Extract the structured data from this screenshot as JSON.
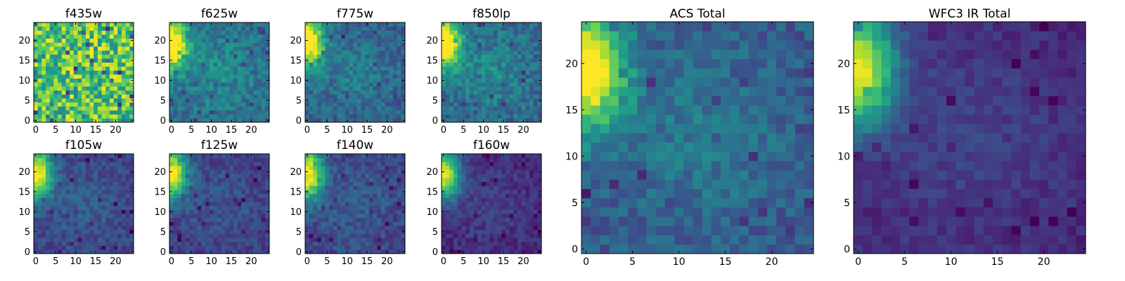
{
  "chart_data": {
    "type": "heatmap",
    "grid_size": 25,
    "colormap": "viridis",
    "grid": false,
    "panels": [
      {
        "id": "f435w",
        "title": "f435w",
        "x_ticks": [
          0,
          5,
          10,
          15,
          20
        ],
        "y_ticks": [
          0,
          5,
          10,
          15,
          20
        ],
        "xlim": [
          -0.5,
          24.5
        ],
        "ylim": [
          -0.5,
          24.5
        ],
        "pattern": "noise",
        "noise_amplitude": 0.28,
        "bright_corner": "upper-left",
        "background_level": 0.72
      },
      {
        "id": "f625w",
        "title": "f625w",
        "x_ticks": [
          0,
          5,
          10,
          15,
          20
        ],
        "y_ticks": [
          0,
          5,
          10,
          15,
          20
        ],
        "xlim": [
          -0.5,
          24.5
        ],
        "ylim": [
          -0.5,
          24.5
        ],
        "pattern": "corner-glow",
        "noise_amplitude": 0.12,
        "bright_corner": "upper-left",
        "background_level": 0.35
      },
      {
        "id": "f775w",
        "title": "f775w",
        "x_ticks": [
          0,
          5,
          10,
          15,
          20
        ],
        "y_ticks": [
          0,
          5,
          10,
          15,
          20
        ],
        "xlim": [
          -0.5,
          24.5
        ],
        "ylim": [
          -0.5,
          24.5
        ],
        "pattern": "corner-glow",
        "noise_amplitude": 0.12,
        "bright_corner": "upper-left",
        "background_level": 0.3
      },
      {
        "id": "f850lp",
        "title": "f850lp",
        "x_ticks": [
          0,
          5,
          10,
          15,
          20
        ],
        "y_ticks": [
          0,
          5,
          10,
          15,
          20
        ],
        "xlim": [
          -0.5,
          24.5
        ],
        "ylim": [
          -0.5,
          24.5
        ],
        "pattern": "corner-glow",
        "noise_amplitude": 0.13,
        "bright_corner": "upper-left",
        "background_level": 0.33
      },
      {
        "id": "f105w",
        "title": "f105w",
        "x_ticks": [
          0,
          5,
          10,
          15,
          20
        ],
        "y_ticks": [
          0,
          5,
          10,
          15,
          20
        ],
        "xlim": [
          -0.5,
          24.5
        ],
        "ylim": [
          -0.5,
          24.5
        ],
        "pattern": "corner-glow",
        "noise_amplitude": 0.09,
        "bright_corner": "upper-left",
        "background_level": 0.2
      },
      {
        "id": "f125w",
        "title": "f125w",
        "x_ticks": [
          0,
          5,
          10,
          15,
          20
        ],
        "y_ticks": [
          0,
          5,
          10,
          15,
          20
        ],
        "xlim": [
          -0.5,
          24.5
        ],
        "ylim": [
          -0.5,
          24.5
        ],
        "pattern": "corner-glow",
        "noise_amplitude": 0.09,
        "bright_corner": "upper-left",
        "background_level": 0.18
      },
      {
        "id": "f140w",
        "title": "f140w",
        "x_ticks": [
          0,
          5,
          10,
          15,
          20
        ],
        "y_ticks": [
          0,
          5,
          10,
          15,
          20
        ],
        "xlim": [
          -0.5,
          24.5
        ],
        "ylim": [
          -0.5,
          24.5
        ],
        "pattern": "corner-glow",
        "noise_amplitude": 0.1,
        "bright_corner": "upper-left",
        "background_level": 0.2
      },
      {
        "id": "f160w",
        "title": "f160w",
        "x_ticks": [
          0,
          5,
          10,
          15,
          20
        ],
        "y_ticks": [
          0,
          5,
          10,
          15,
          20
        ],
        "xlim": [
          -0.5,
          24.5
        ],
        "ylim": [
          -0.5,
          24.5
        ],
        "pattern": "corner-glow",
        "noise_amplitude": 0.08,
        "bright_corner": "upper-left",
        "background_level": 0.12
      },
      {
        "id": "acs-total",
        "title": "ACS Total",
        "x_ticks": [
          0,
          5,
          10,
          15,
          20
        ],
        "y_ticks": [
          0,
          5,
          10,
          15,
          20
        ],
        "xlim": [
          -0.5,
          24.5
        ],
        "ylim": [
          -0.5,
          24.5
        ],
        "pattern": "corner-glow",
        "noise_amplitude": 0.1,
        "bright_corner": "upper-left",
        "background_level": 0.28
      },
      {
        "id": "wfc3-ir-total",
        "title": "WFC3 IR Total",
        "x_ticks": [
          0,
          5,
          10,
          15,
          20
        ],
        "y_ticks": [
          0,
          5,
          10,
          15,
          20
        ],
        "xlim": [
          -0.5,
          24.5
        ],
        "ylim": [
          -0.5,
          24.5
        ],
        "pattern": "corner-glow",
        "noise_amplitude": 0.06,
        "bright_corner": "upper-left",
        "background_level": 0.12
      }
    ]
  },
  "colors": {
    "viridis_stops": [
      "#440154",
      "#482878",
      "#3e4989",
      "#31688e",
      "#26828e",
      "#1f9e89",
      "#35b779",
      "#6ece58",
      "#b5de2b",
      "#fde725"
    ],
    "axis": "#000000",
    "background": "#ffffff"
  }
}
